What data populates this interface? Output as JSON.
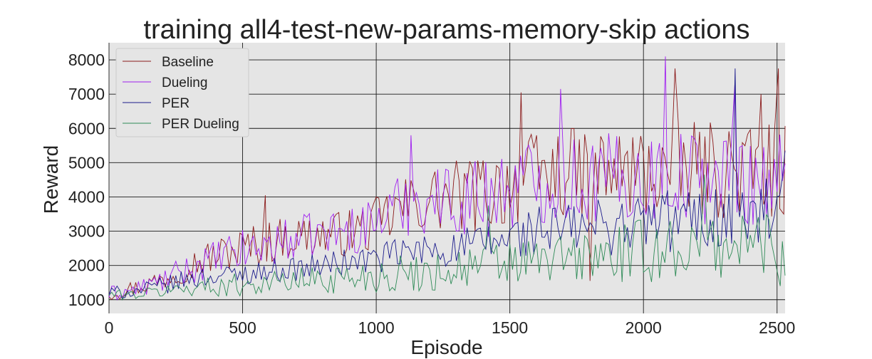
{
  "chart_data": {
    "type": "line",
    "title": "training all4-test-new-params-memory-skip actions",
    "xlabel": "Episode",
    "ylabel": "Reward",
    "xlim": [
      0,
      2530
    ],
    "ylim": [
      600,
      8500
    ],
    "xticks": [
      0,
      500,
      1000,
      1500,
      2000,
      2500
    ],
    "yticks": [
      1000,
      2000,
      3000,
      4000,
      5000,
      6000,
      7000,
      8000
    ],
    "grid": true,
    "background": "#e5e5e5",
    "legend_position": "top-left",
    "sample_step": 10,
    "series": [
      {
        "name": "Baseline",
        "color": "#8b1a1a",
        "x": [
          0,
          100,
          200,
          300,
          400,
          500,
          600,
          700,
          800,
          900,
          1000,
          1100,
          1200,
          1300,
          1400,
          1500,
          1600,
          1700,
          1800,
          1900,
          2000,
          2100,
          2200,
          2300,
          2400,
          2500,
          2530
        ],
        "y": [
          1200,
          1350,
          1600,
          2000,
          2300,
          2500,
          2700,
          2850,
          2900,
          2950,
          3200,
          3700,
          3900,
          4000,
          4100,
          4400,
          4600,
          4700,
          4700,
          4700,
          4700,
          4800,
          4800,
          4800,
          4800,
          4800,
          4700
        ],
        "spread": [
          250,
          250,
          350,
          450,
          550,
          650,
          650,
          650,
          650,
          700,
          800,
          900,
          1000,
          1100,
          1200,
          1300,
          1300,
          1300,
          1350,
          1350,
          1400,
          1400,
          1400,
          1450,
          1450,
          1450,
          1450
        ],
        "peaks": [
          [
            585,
            4050
          ],
          [
            1542,
            7050
          ],
          [
            1800,
            1550
          ],
          [
            2118,
            7750
          ],
          [
            2440,
            7000
          ],
          [
            2505,
            7750
          ],
          [
            2525,
            3500
          ]
        ]
      },
      {
        "name": "Dueling",
        "color": "#a020f0",
        "x": [
          0,
          100,
          200,
          300,
          400,
          500,
          600,
          700,
          800,
          900,
          1000,
          1100,
          1200,
          1300,
          1400,
          1500,
          1600,
          1700,
          1800,
          1900,
          2000,
          2100,
          2200,
          2300,
          2400,
          2500,
          2530
        ],
        "y": [
          1150,
          1300,
          1550,
          1900,
          2200,
          2400,
          2600,
          2800,
          2950,
          3000,
          3300,
          3800,
          3950,
          3950,
          4000,
          4300,
          4500,
          4500,
          4500,
          4550,
          4550,
          4600,
          4600,
          4600,
          4600,
          4600,
          4500
        ],
        "spread": [
          250,
          250,
          350,
          450,
          550,
          650,
          650,
          650,
          650,
          700,
          800,
          950,
          1050,
          1150,
          1250,
          1300,
          1300,
          1300,
          1350,
          1350,
          1400,
          1400,
          1400,
          1450,
          1450,
          1450,
          1450
        ],
        "peaks": [
          [
            1130,
            5800
          ],
          [
            1690,
            7150
          ],
          [
            2082,
            8100
          ],
          [
            2342,
            7300
          ]
        ]
      },
      {
        "name": "PER",
        "color": "#1a1a8b",
        "x": [
          0,
          100,
          200,
          300,
          400,
          500,
          600,
          700,
          800,
          900,
          1000,
          1100,
          1200,
          1300,
          1400,
          1500,
          1600,
          1700,
          1800,
          1900,
          2000,
          2100,
          2200,
          2300,
          2400,
          2500,
          2530
        ],
        "y": [
          1200,
          1250,
          1400,
          1600,
          1700,
          1750,
          1850,
          1900,
          2000,
          2100,
          2200,
          2350,
          2450,
          2500,
          2600,
          2800,
          3000,
          3050,
          3100,
          3200,
          3250,
          3300,
          3350,
          3400,
          3400,
          3500,
          3500
        ],
        "spread": [
          200,
          200,
          250,
          300,
          300,
          300,
          350,
          350,
          400,
          400,
          450,
          500,
          550,
          600,
          650,
          700,
          750,
          800,
          850,
          900,
          950,
          1000,
          1000,
          1050,
          1050,
          1100,
          1100
        ],
        "peaks": [
          [
            2343,
            7750
          ],
          [
            2530,
            5350
          ]
        ]
      },
      {
        "name": "PER Dueling",
        "color": "#2e8b57",
        "x": [
          0,
          100,
          200,
          300,
          400,
          500,
          600,
          700,
          800,
          900,
          1000,
          1100,
          1200,
          1300,
          1400,
          1500,
          1600,
          1700,
          1800,
          1900,
          2000,
          2100,
          2200,
          2300,
          2400,
          2500,
          2530
        ],
        "y": [
          1150,
          1150,
          1250,
          1350,
          1400,
          1450,
          1500,
          1550,
          1600,
          1650,
          1700,
          1750,
          1800,
          1900,
          2000,
          2050,
          2100,
          2200,
          2250,
          2300,
          2400,
          2500,
          2550,
          2600,
          2650,
          2700,
          2700
        ],
        "spread": [
          150,
          150,
          200,
          250,
          300,
          350,
          350,
          400,
          450,
          450,
          500,
          550,
          600,
          650,
          700,
          750,
          750,
          800,
          850,
          900,
          950,
          1000,
          1000,
          1050,
          1050,
          1100,
          1100
        ],
        "peaks": [
          [
            1420,
            3750
          ],
          [
            2228,
            4650
          ],
          [
            2512,
            1400
          ]
        ]
      }
    ]
  }
}
